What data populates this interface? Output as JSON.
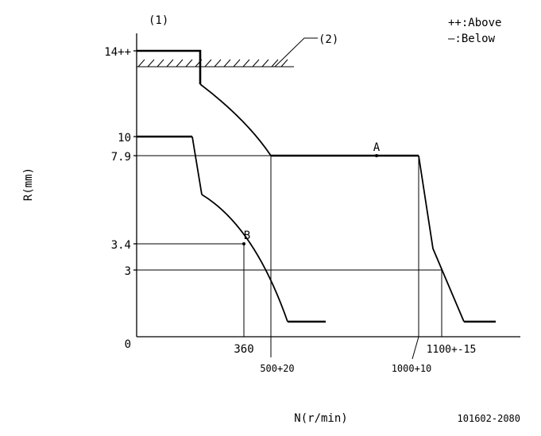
{
  "figure_label": "(1)",
  "leader_label": "(2)",
  "legend": {
    "above": "++:Above",
    "below": "—:Below"
  },
  "y_axis": {
    "title": "R(mm)",
    "ticks": [
      "14++",
      "10",
      "7.9",
      "3.4",
      "3",
      "0"
    ]
  },
  "x_axis": {
    "title": "N(r/min)",
    "ticks": [
      "360",
      "500+20",
      "1000+10",
      "1100+-15"
    ]
  },
  "points": {
    "a": "A",
    "b": "B"
  },
  "part_number": "101602-2080"
}
